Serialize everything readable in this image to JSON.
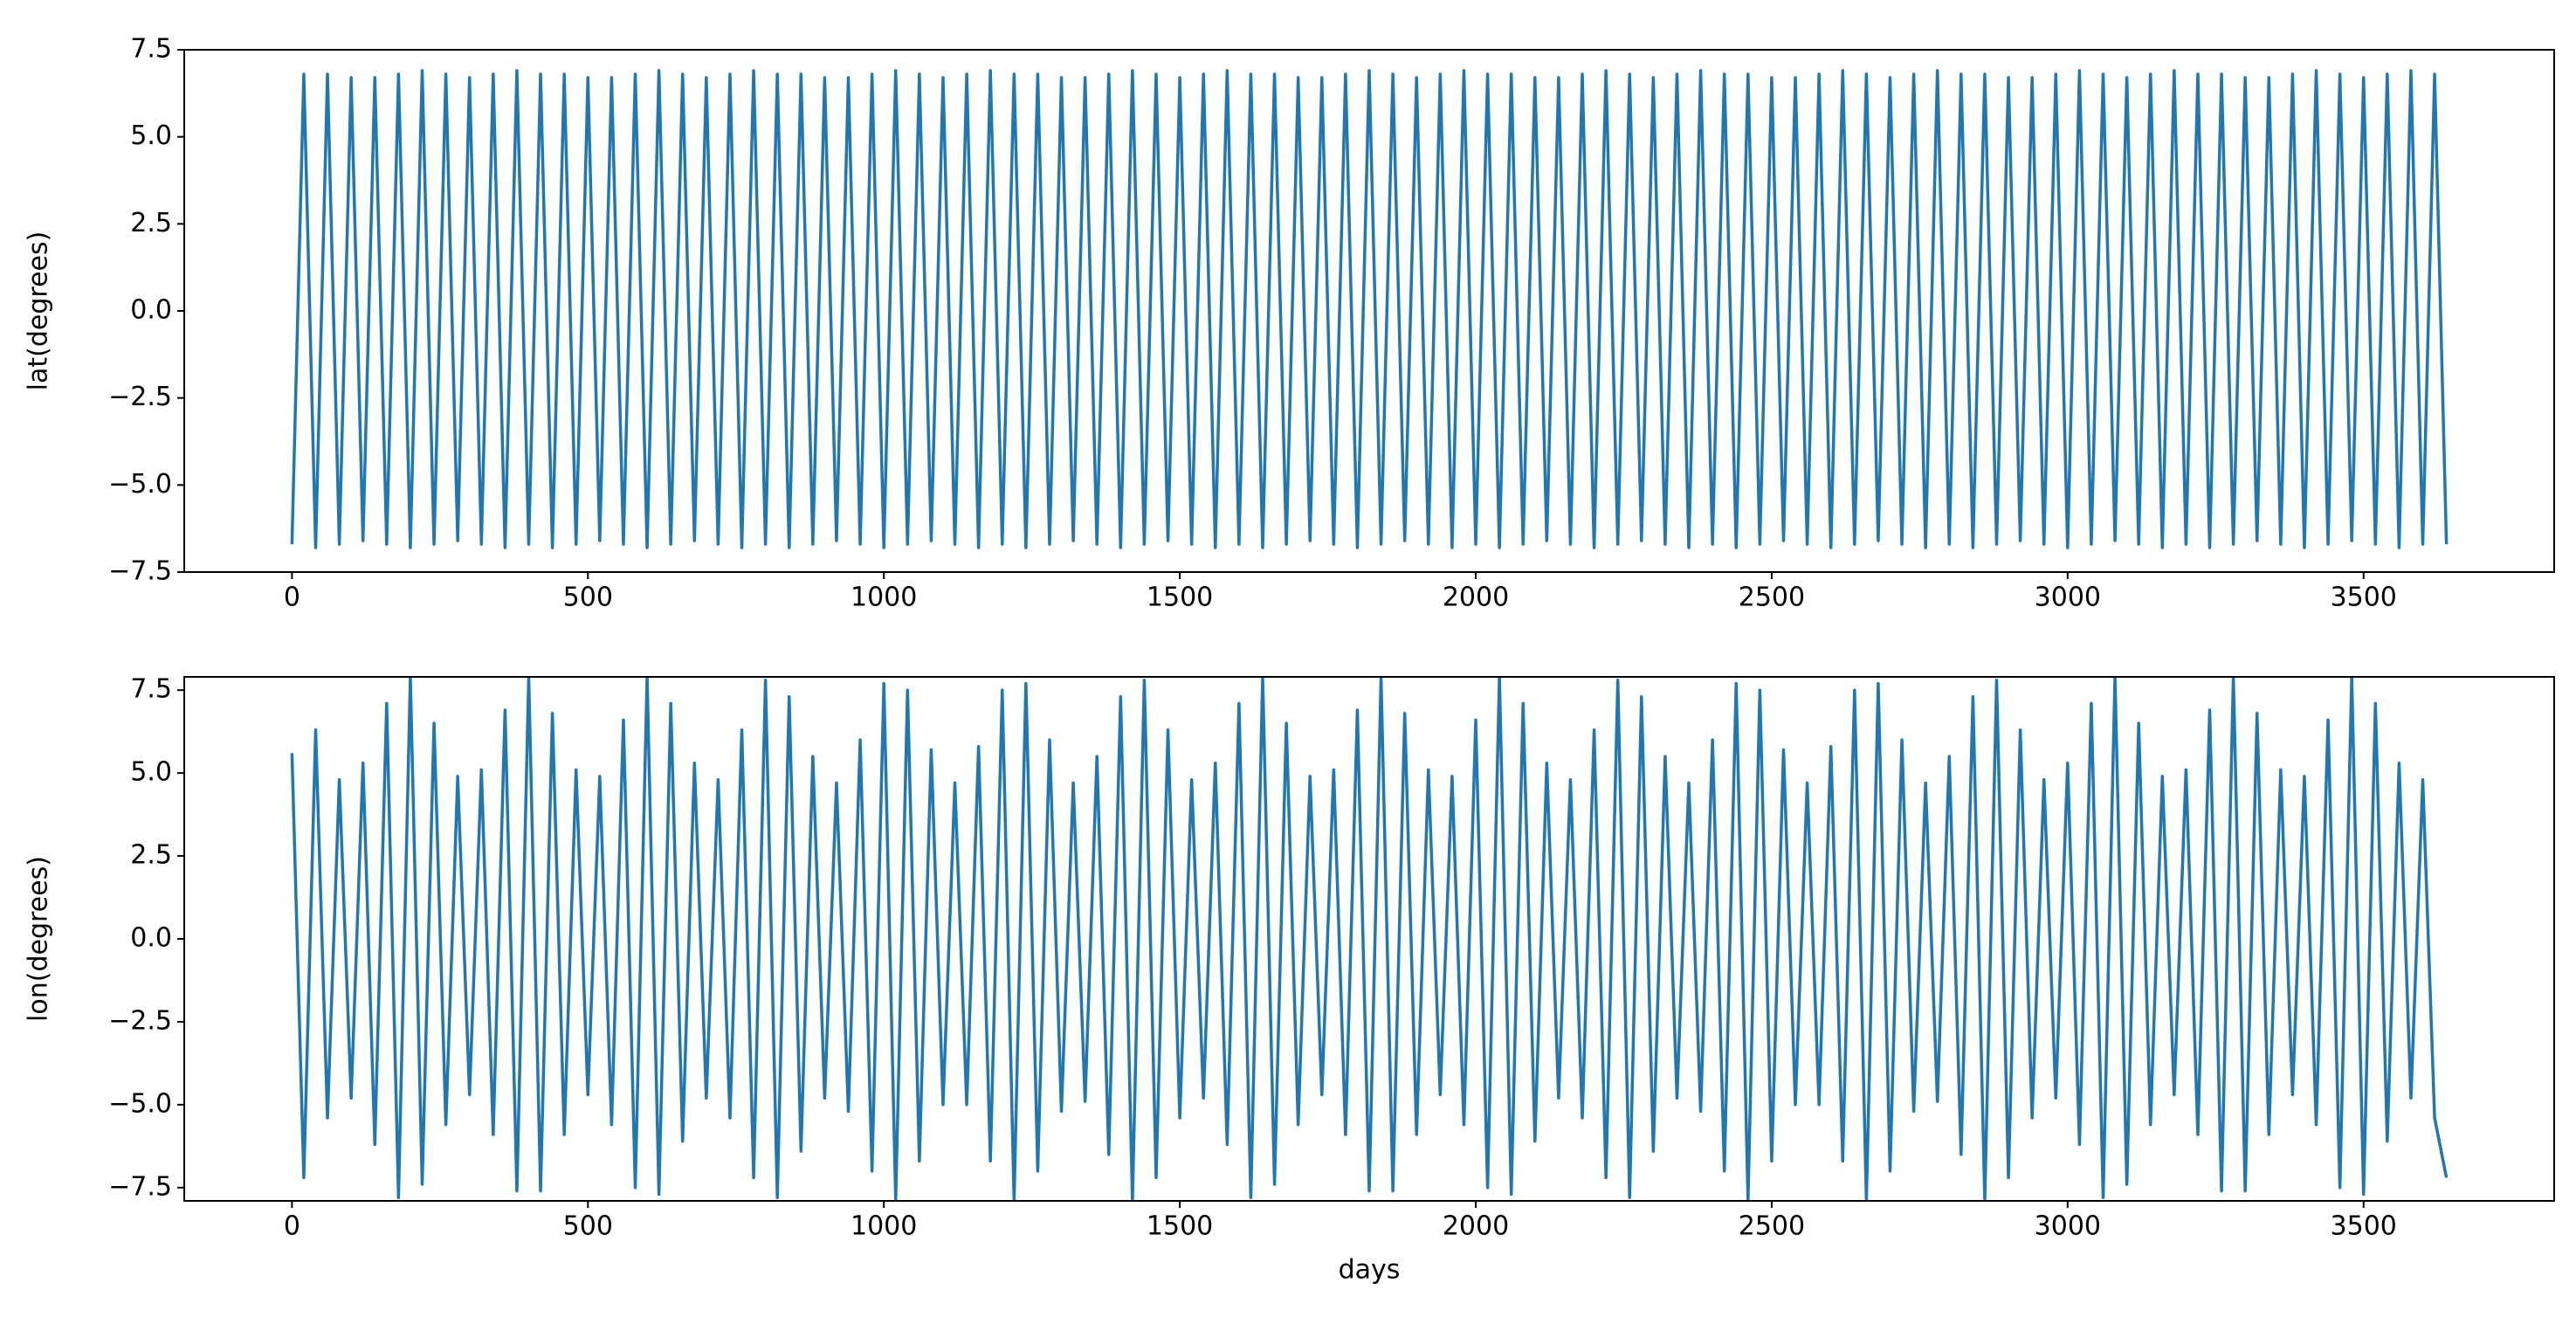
{
  "chart_data": [
    {
      "type": "line",
      "ylabel": "lat(degrees)",
      "color": "#1f77b4",
      "xlim": [
        -182,
        3822
      ],
      "ylim": [
        -7.5,
        7.5
      ],
      "xticks": [
        0,
        500,
        1000,
        1500,
        2000,
        2500,
        3000,
        3500
      ],
      "yticks": [
        {
          "value": -7.5,
          "label": "−7.5"
        },
        {
          "value": -5,
          "label": "−5.0"
        },
        {
          "value": -2.5,
          "label": "−2.5"
        },
        {
          "value": 0,
          "label": "0.0"
        },
        2.5,
        {
          "value": 5,
          "label": "5.0"
        },
        7.5
      ],
      "x": [
        0,
        20,
        40,
        60,
        80,
        100,
        120,
        140,
        160,
        180,
        200,
        220,
        240,
        260,
        280,
        300,
        320,
        340,
        360,
        380,
        400,
        420,
        440,
        460,
        480,
        500,
        520,
        540,
        560,
        580,
        600,
        620,
        640,
        660,
        680,
        700,
        720,
        740,
        760,
        780,
        800,
        820,
        840,
        860,
        880,
        900,
        920,
        940,
        960,
        980,
        1000,
        1020,
        1040,
        1060,
        1080,
        1100,
        1120,
        1140,
        1160,
        1180,
        1200,
        1220,
        1240,
        1260,
        1280,
        1300,
        1320,
        1340,
        1360,
        1380,
        1400,
        1420,
        1440,
        1460,
        1480,
        1500,
        1520,
        1540,
        1560,
        1580,
        1600,
        1620,
        1640,
        1660,
        1680,
        1700,
        1720,
        1740,
        1760,
        1780,
        1800,
        1820,
        1840,
        1860,
        1880,
        1900,
        1920,
        1940,
        1960,
        1980,
        2000,
        2020,
        2040,
        2060,
        2080,
        2100,
        2120,
        2140,
        2160,
        2180,
        2200,
        2220,
        2240,
        2260,
        2280,
        2300,
        2320,
        2340,
        2360,
        2380,
        2400,
        2420,
        2440,
        2460,
        2480,
        2500,
        2520,
        2540,
        2560,
        2580,
        2600,
        2620,
        2640,
        2660,
        2680,
        2700,
        2720,
        2740,
        2760,
        2780,
        2800,
        2820,
        2840,
        2860,
        2880,
        2900,
        2920,
        2940,
        2960,
        2980,
        3000,
        3020,
        3040,
        3060,
        3080,
        3100,
        3120,
        3140,
        3160,
        3180,
        3200,
        3220,
        3240,
        3260,
        3280,
        3300,
        3320,
        3340,
        3360,
        3380,
        3400,
        3420,
        3440,
        3460,
        3480,
        3500,
        3520,
        3540,
        3560,
        3580,
        3600,
        3620,
        3640
      ],
      "values": [
        -6.7,
        6.8,
        -6.8,
        6.8,
        -6.7,
        6.7,
        -6.6,
        6.7,
        -6.7,
        6.8,
        -6.8,
        6.9,
        -6.7,
        6.8,
        -6.6,
        6.7,
        -6.7,
        6.8,
        -6.8,
        6.9,
        -6.7,
        6.8,
        -6.8,
        6.8,
        -6.7,
        6.7,
        -6.6,
        6.7,
        -6.7,
        6.8,
        -6.8,
        6.9,
        -6.7,
        6.8,
        -6.6,
        6.7,
        -6.7,
        6.8,
        -6.8,
        6.9,
        -6.7,
        6.8,
        -6.8,
        6.8,
        -6.7,
        6.7,
        -6.6,
        6.7,
        -6.7,
        6.8,
        -6.8,
        6.9,
        -6.7,
        6.8,
        -6.6,
        6.7,
        -6.7,
        6.8,
        -6.8,
        6.9,
        -6.7,
        6.8,
        -6.8,
        6.8,
        -6.7,
        6.7,
        -6.6,
        6.7,
        -6.7,
        6.8,
        -6.8,
        6.9,
        -6.7,
        6.8,
        -6.6,
        6.7,
        -6.7,
        6.8,
        -6.8,
        6.9,
        -6.7,
        6.8,
        -6.8,
        6.8,
        -6.7,
        6.7,
        -6.6,
        6.7,
        -6.7,
        6.8,
        -6.8,
        6.9,
        -6.7,
        6.8,
        -6.6,
        6.7,
        -6.7,
        6.8,
        -6.8,
        6.9,
        -6.7,
        6.8,
        -6.8,
        6.8,
        -6.7,
        6.7,
        -6.6,
        6.7,
        -6.7,
        6.8,
        -6.8,
        6.9,
        -6.7,
        6.8,
        -6.6,
        6.7,
        -6.7,
        6.8,
        -6.8,
        6.9,
        -6.7,
        6.8,
        -6.8,
        6.8,
        -6.7,
        6.7,
        -6.6,
        6.7,
        -6.7,
        6.8,
        -6.8,
        6.9,
        -6.7,
        6.8,
        -6.6,
        6.7,
        -6.7,
        6.8,
        -6.8,
        6.9,
        -6.7,
        6.8,
        -6.8,
        6.8,
        -6.7,
        6.7,
        -6.6,
        6.7,
        -6.7,
        6.8,
        -6.8,
        6.9,
        -6.7,
        6.8,
        -6.6,
        6.7,
        -6.7,
        6.8,
        -6.8,
        6.9,
        -6.7,
        6.8,
        -6.8,
        6.8,
        -6.7,
        6.7,
        -6.6,
        6.7,
        -6.7,
        6.8,
        -6.8,
        6.9,
        -6.7,
        6.8,
        -6.6,
        6.7,
        -6.7,
        6.8,
        -6.8,
        6.9,
        -6.7,
        6.8,
        -6.7
      ]
    },
    {
      "type": "line",
      "xlabel": "days",
      "ylabel": "lon(degrees)",
      "color": "#1f77b4",
      "xlim": [
        -182,
        3822
      ],
      "ylim": [
        -7.9,
        7.9
      ],
      "xticks": [
        0,
        500,
        1000,
        1500,
        2000,
        2500,
        3000,
        3500
      ],
      "yticks": [
        {
          "value": -7.5,
          "label": "−7.5"
        },
        {
          "value": -5,
          "label": "−5.0"
        },
        {
          "value": -2.5,
          "label": "−2.5"
        },
        {
          "value": 0,
          "label": "0.0"
        },
        2.5,
        {
          "value": 5,
          "label": "5.0"
        },
        7.5
      ],
      "x": [
        0,
        20,
        40,
        60,
        80,
        100,
        120,
        140,
        160,
        180,
        200,
        220,
        240,
        260,
        280,
        300,
        320,
        340,
        360,
        380,
        400,
        420,
        440,
        460,
        480,
        500,
        520,
        540,
        560,
        580,
        600,
        620,
        640,
        660,
        680,
        700,
        720,
        740,
        760,
        780,
        800,
        820,
        840,
        860,
        880,
        900,
        920,
        940,
        960,
        980,
        1000,
        1020,
        1040,
        1060,
        1080,
        1100,
        1120,
        1140,
        1160,
        1180,
        1200,
        1220,
        1240,
        1260,
        1280,
        1300,
        1320,
        1340,
        1360,
        1380,
        1400,
        1420,
        1440,
        1460,
        1480,
        1500,
        1520,
        1540,
        1560,
        1580,
        1600,
        1620,
        1640,
        1660,
        1680,
        1700,
        1720,
        1740,
        1760,
        1780,
        1800,
        1820,
        1840,
        1860,
        1880,
        1900,
        1920,
        1940,
        1960,
        1980,
        2000,
        2020,
        2040,
        2060,
        2080,
        2100,
        2120,
        2140,
        2160,
        2180,
        2200,
        2220,
        2240,
        2260,
        2280,
        2300,
        2320,
        2340,
        2360,
        2380,
        2400,
        2420,
        2440,
        2460,
        2480,
        2500,
        2520,
        2540,
        2560,
        2580,
        2600,
        2620,
        2640,
        2660,
        2680,
        2700,
        2720,
        2740,
        2760,
        2780,
        2800,
        2820,
        2840,
        2860,
        2880,
        2900,
        2920,
        2940,
        2960,
        2980,
        3000,
        3020,
        3040,
        3060,
        3080,
        3100,
        3120,
        3140,
        3160,
        3180,
        3200,
        3220,
        3240,
        3260,
        3280,
        3300,
        3320,
        3340,
        3360,
        3380,
        3400,
        3420,
        3440,
        3460,
        3480,
        3500,
        3520,
        3540,
        3560,
        3580,
        3600,
        3620,
        3640
      ],
      "values": [
        5.6,
        -7.2,
        6.3,
        -5.4,
        4.8,
        -4.8,
        5.3,
        -6.2,
        7.1,
        -7.8,
        7.9,
        -7.4,
        6.5,
        -5.6,
        4.9,
        -4.7,
        5.1,
        -5.9,
        6.9,
        -7.6,
        7.9,
        -7.6,
        6.8,
        -5.9,
        5.1,
        -4.7,
        4.9,
        -5.6,
        6.6,
        -7.5,
        7.9,
        -7.7,
        7.1,
        -6.1,
        5.3,
        -4.8,
        4.8,
        -5.4,
        6.3,
        -7.2,
        7.8,
        -7.8,
        7.3,
        -6.4,
        5.5,
        -4.8,
        4.7,
        -5.2,
        6.0,
        -7.0,
        7.7,
        -7.9,
        7.5,
        -6.7,
        5.7,
        -5.0,
        4.7,
        -5.0,
        5.8,
        -6.7,
        7.5,
        -7.9,
        7.7,
        -7.0,
        6.0,
        -5.2,
        4.7,
        -4.9,
        5.5,
        -6.5,
        7.3,
        -7.9,
        7.8,
        -7.2,
        6.3,
        -5.4,
        4.8,
        -4.8,
        5.3,
        -6.2,
        7.1,
        -7.8,
        7.9,
        -7.4,
        6.5,
        -5.6,
        4.9,
        -4.7,
        5.1,
        -5.9,
        6.9,
        -7.6,
        7.9,
        -7.6,
        6.8,
        -5.9,
        5.1,
        -4.7,
        4.9,
        -5.6,
        6.6,
        -7.5,
        7.9,
        -7.7,
        7.1,
        -6.1,
        5.3,
        -4.8,
        4.8,
        -5.4,
        6.3,
        -7.2,
        7.8,
        -7.8,
        7.3,
        -6.4,
        5.5,
        -4.8,
        4.7,
        -5.2,
        6.0,
        -7.0,
        7.7,
        -7.9,
        7.5,
        -6.7,
        5.7,
        -5.0,
        4.7,
        -5.0,
        5.8,
        -6.7,
        7.5,
        -7.9,
        7.7,
        -7.0,
        6.0,
        -5.2,
        4.7,
        -4.9,
        5.5,
        -6.5,
        7.3,
        -7.9,
        7.8,
        -7.2,
        6.3,
        -5.4,
        4.8,
        -4.8,
        5.3,
        -6.2,
        7.1,
        -7.8,
        7.9,
        -7.4,
        6.5,
        -5.6,
        4.9,
        -4.7,
        5.1,
        -5.9,
        6.9,
        -7.6,
        7.9,
        -7.6,
        6.8,
        -5.9,
        5.1,
        -4.7,
        4.9,
        -5.6,
        6.6,
        -7.5,
        7.9,
        -7.7,
        7.1,
        -6.1,
        5.3,
        -4.8,
        4.8,
        -5.4,
        -7.2
      ]
    }
  ]
}
